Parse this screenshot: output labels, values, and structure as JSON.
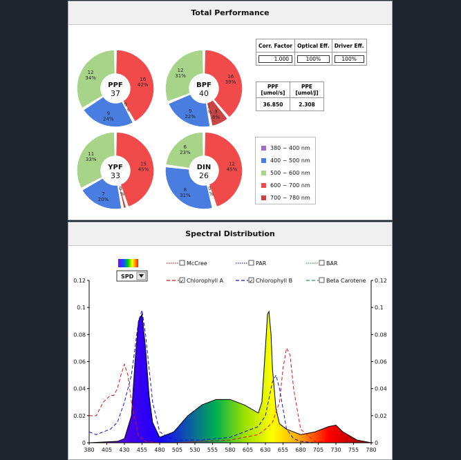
{
  "performance": {
    "title": "Total Performance",
    "donuts": [
      {
        "label": "PPF",
        "value": "37",
        "slices": [
          {
            "v": "16",
            "p": "42%",
            "color": "#f04a4a"
          },
          {
            "v": "0",
            "p": "0%",
            "color": "#c94444"
          },
          {
            "v": "9",
            "p": "24%",
            "color": "#4a7de0"
          },
          {
            "v": "12",
            "p": "34%",
            "color": "#a8d48a"
          }
        ]
      },
      {
        "label": "BPF",
        "value": "40",
        "slices": [
          {
            "v": "16",
            "p": "39%",
            "color": "#f04a4a"
          },
          {
            "v": "3",
            "p": "8%",
            "color": "#c94444"
          },
          {
            "v": "0",
            "p": "0%",
            "color": "#a06cc8"
          },
          {
            "v": "9",
            "p": "22%",
            "color": "#4a7de0"
          },
          {
            "v": "12",
            "p": "31%",
            "color": "#a8d48a"
          }
        ]
      },
      {
        "label": "YPF",
        "value": "33",
        "slices": [
          {
            "v": "15",
            "p": "45%",
            "color": "#f04a4a"
          },
          {
            "v": "0",
            "p": "2%",
            "color": "#c94444"
          },
          {
            "v": "7",
            "p": "20%",
            "color": "#4a7de0"
          },
          {
            "v": "11",
            "p": "33%",
            "color": "#a8d48a"
          }
        ]
      },
      {
        "label": "DIN",
        "value": "26",
        "slices": [
          {
            "v": "12",
            "p": "45%",
            "color": "#f04a4a"
          },
          {
            "v": "0",
            "p": "1%",
            "color": "#c94444"
          },
          {
            "v": "8",
            "p": "31%",
            "color": "#4a7de0"
          },
          {
            "v": "6",
            "p": "23%",
            "color": "#a8d48a"
          }
        ]
      }
    ],
    "factors": {
      "headers": [
        "Corr. Factor",
        "Optical Eff.",
        "Driver Eff."
      ],
      "values": [
        "1.000",
        "100%",
        "100%"
      ]
    },
    "ppf_table": {
      "header1": "PPF",
      "unit1": "[umol/s]",
      "header2": "PPE",
      "unit2": "[umol/J]",
      "value1": "36.850",
      "value2": "2.308"
    },
    "legend": [
      {
        "label": "380 ~ 400 nm",
        "color": "#a06cc8"
      },
      {
        "label": "400 ~ 500 nm",
        "color": "#4a7de0"
      },
      {
        "label": "500 ~ 600 nm",
        "color": "#a8d48a"
      },
      {
        "label": "600 ~ 700 nm",
        "color": "#f04a4a"
      },
      {
        "label": "700 ~ 780 nm",
        "color": "#c94444"
      }
    ]
  },
  "spectral": {
    "title": "Spectral Distribution",
    "dropdown": "SPD",
    "legend": [
      {
        "label": "McCree",
        "checked": false
      },
      {
        "label": "PAR",
        "checked": false
      },
      {
        "label": "BAR",
        "checked": false
      },
      {
        "label": "Chlorophyll A",
        "checked": true
      },
      {
        "label": "Chlorophyll B",
        "checked": true
      },
      {
        "label": "Beta Carotene",
        "checked": false
      }
    ],
    "check_mark": "✓"
  },
  "chart_data": {
    "type": "area",
    "x_ticks": [
      "380",
      "405",
      "430",
      "455",
      "480",
      "505",
      "530",
      "555",
      "580",
      "605",
      "630",
      "655",
      "680",
      "705",
      "730",
      "755",
      "780"
    ],
    "y_ticks": [
      "0",
      "0.02",
      "0.04",
      "0.06",
      "0.08",
      "0.1",
      "0.12"
    ],
    "xlim": [
      380,
      780
    ],
    "ylim": [
      0,
      0.12
    ],
    "series": [
      {
        "name": "SPD",
        "x": [
          380,
          420,
          430,
          440,
          445,
          450,
          455,
          460,
          465,
          470,
          480,
          500,
          520,
          540,
          560,
          580,
          600,
          620,
          625,
          630,
          633,
          635,
          638,
          640,
          645,
          650,
          660,
          680,
          700,
          720,
          730,
          740,
          760,
          780
        ],
        "y": [
          0,
          0.001,
          0.003,
          0.02,
          0.06,
          0.09,
          0.095,
          0.07,
          0.035,
          0.015,
          0.004,
          0.008,
          0.02,
          0.028,
          0.032,
          0.032,
          0.028,
          0.022,
          0.03,
          0.07,
          0.095,
          0.097,
          0.08,
          0.055,
          0.025,
          0.014,
          0.01,
          0.006,
          0.008,
          0.012,
          0.013,
          0.008,
          0.002,
          0
        ]
      },
      {
        "name": "Chlorophyll A",
        "x": [
          380,
          390,
          400,
          410,
          415,
          420,
          425,
          430,
          435,
          440,
          450,
          460,
          480,
          500,
          540,
          580,
          600,
          620,
          630,
          640,
          650,
          655,
          660,
          665,
          670,
          680,
          700,
          720,
          780
        ],
        "y": [
          0.02,
          0.02,
          0.03,
          0.035,
          0.035,
          0.04,
          0.05,
          0.058,
          0.05,
          0.03,
          0.005,
          0.001,
          0,
          0,
          0.001,
          0.002,
          0.004,
          0.006,
          0.01,
          0.015,
          0.03,
          0.055,
          0.07,
          0.065,
          0.04,
          0.01,
          0.001,
          0,
          0
        ]
      },
      {
        "name": "Chlorophyll B",
        "x": [
          380,
          390,
          400,
          410,
          420,
          430,
          440,
          450,
          455,
          460,
          470,
          480,
          500,
          540,
          580,
          600,
          620,
          630,
          640,
          645,
          650,
          660,
          670,
          680,
          700,
          780
        ],
        "y": [
          0.008,
          0.006,
          0.008,
          0.01,
          0.015,
          0.03,
          0.05,
          0.09,
          0.098,
          0.08,
          0.03,
          0.008,
          0.002,
          0.002,
          0.004,
          0.008,
          0.012,
          0.02,
          0.045,
          0.05,
          0.04,
          0.01,
          0.003,
          0.001,
          0,
          0
        ]
      }
    ]
  }
}
